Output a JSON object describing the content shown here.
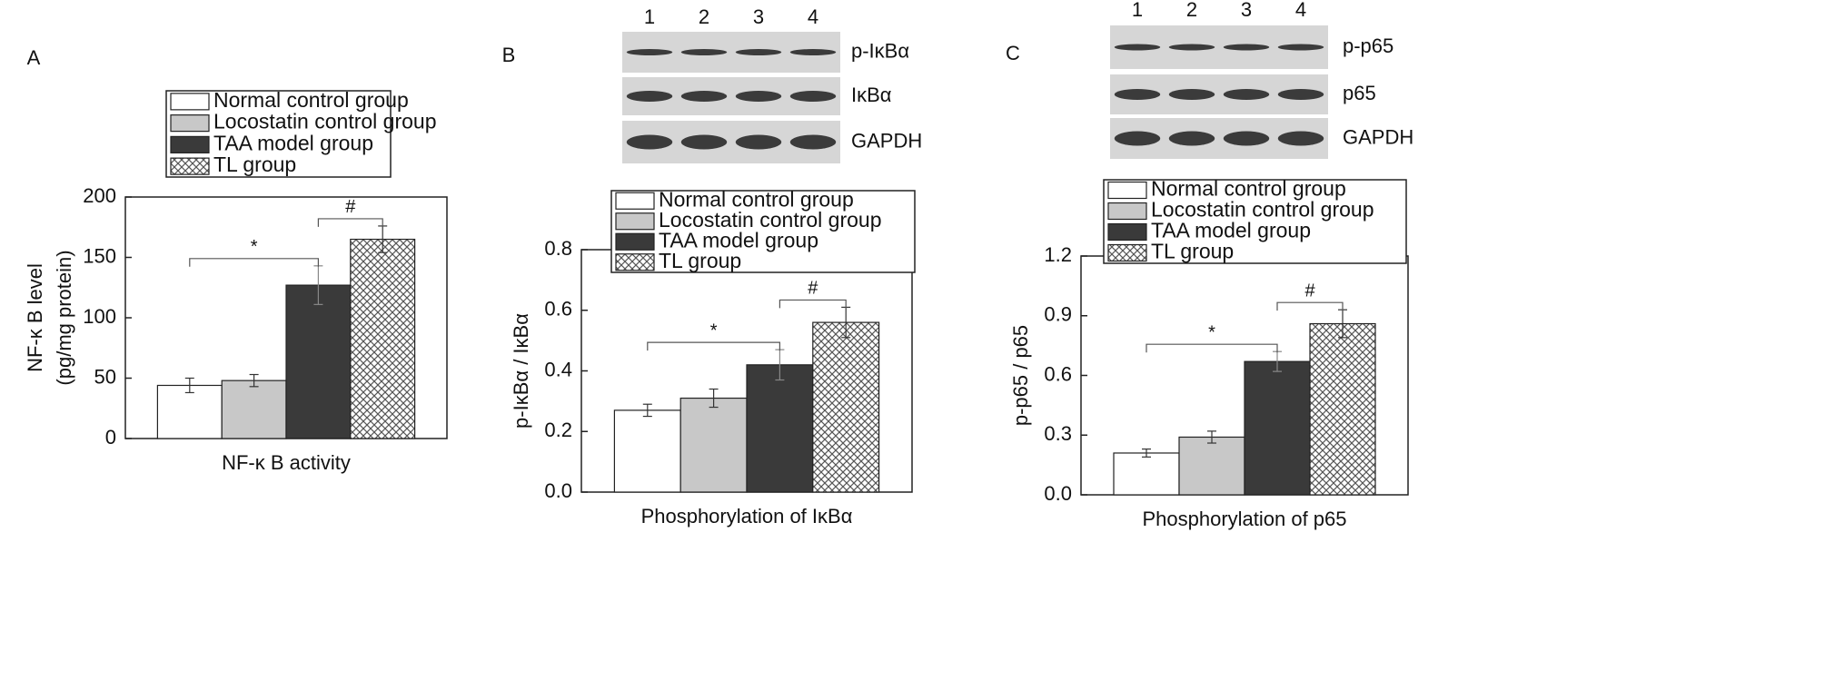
{
  "chart_data": [
    {
      "type": "bar",
      "panel": "A",
      "categories": [
        "NF-κ B activity"
      ],
      "y_label": [
        "NF-κ B level",
        "(pg/mg protein)"
      ],
      "ylim": [
        0,
        200
      ],
      "yticks": [
        0,
        50,
        100,
        150,
        200
      ],
      "series": [
        {
          "name": "Normal control group",
          "color": "#ffffff",
          "values": [
            44
          ],
          "errors": [
            6
          ]
        },
        {
          "name": "Locostatin control group",
          "color": "#c8c8c8",
          "values": [
            48
          ],
          "errors": [
            5
          ]
        },
        {
          "name": "TAA model group",
          "color": "#3a3a3a",
          "values": [
            127
          ],
          "errors": [
            16
          ]
        },
        {
          "name": "TL group",
          "color": "#ffffff",
          "hatch": true,
          "values": [
            165
          ],
          "errors": [
            11
          ]
        }
      ],
      "annotations": [
        "*",
        "#"
      ]
    },
    {
      "type": "bar",
      "panel": "B",
      "blot": {
        "lanes": [
          "1",
          "2",
          "3",
          "4"
        ],
        "rows": [
          "p-IκBα",
          "IκBα",
          "GAPDH"
        ]
      },
      "categories": [
        "Phosphorylation of IκBα"
      ],
      "y_label": "p-IκBα / IκBα",
      "ylim": [
        0,
        0.8
      ],
      "yticks": [
        {
          "value": 0,
          "label": "0.0"
        },
        0.2,
        0.4,
        0.6,
        0.8
      ],
      "series": [
        {
          "name": "Normal control group",
          "color": "#ffffff",
          "values": [
            0.27
          ],
          "errors": [
            0.02
          ]
        },
        {
          "name": "Locostatin control group",
          "color": "#c8c8c8",
          "values": [
            0.31
          ],
          "errors": [
            0.03
          ]
        },
        {
          "name": "TAA model group",
          "color": "#3a3a3a",
          "values": [
            0.42
          ],
          "errors": [
            0.05
          ]
        },
        {
          "name": "TL group",
          "color": "#ffffff",
          "hatch": true,
          "values": [
            0.56
          ],
          "errors": [
            0.05
          ]
        }
      ],
      "annotations": [
        "*",
        "#"
      ]
    },
    {
      "type": "bar",
      "panel": "C",
      "blot": {
        "lanes": [
          "1",
          "2",
          "3",
          "4"
        ],
        "rows": [
          "p-p65",
          "p65",
          "GAPDH"
        ]
      },
      "categories": [
        "Phosphorylation of p65"
      ],
      "y_label": "p-p65 / p65",
      "ylim": [
        0,
        1.2
      ],
      "yticks": [
        {
          "value": 0,
          "label": "0.0"
        },
        0.3,
        0.6,
        0.9,
        1.2
      ],
      "series": [
        {
          "name": "Normal control group",
          "color": "#ffffff",
          "values": [
            0.21
          ],
          "errors": [
            0.02
          ]
        },
        {
          "name": "Locostatin control group",
          "color": "#c8c8c8",
          "values": [
            0.29
          ],
          "errors": [
            0.03
          ]
        },
        {
          "name": "TAA model group",
          "color": "#3a3a3a",
          "values": [
            0.67
          ],
          "errors": [
            0.05
          ]
        },
        {
          "name": "TL group",
          "color": "#ffffff",
          "hatch": true,
          "values": [
            0.86
          ],
          "errors": [
            0.07
          ]
        }
      ],
      "annotations": [
        "*",
        "#"
      ]
    }
  ]
}
